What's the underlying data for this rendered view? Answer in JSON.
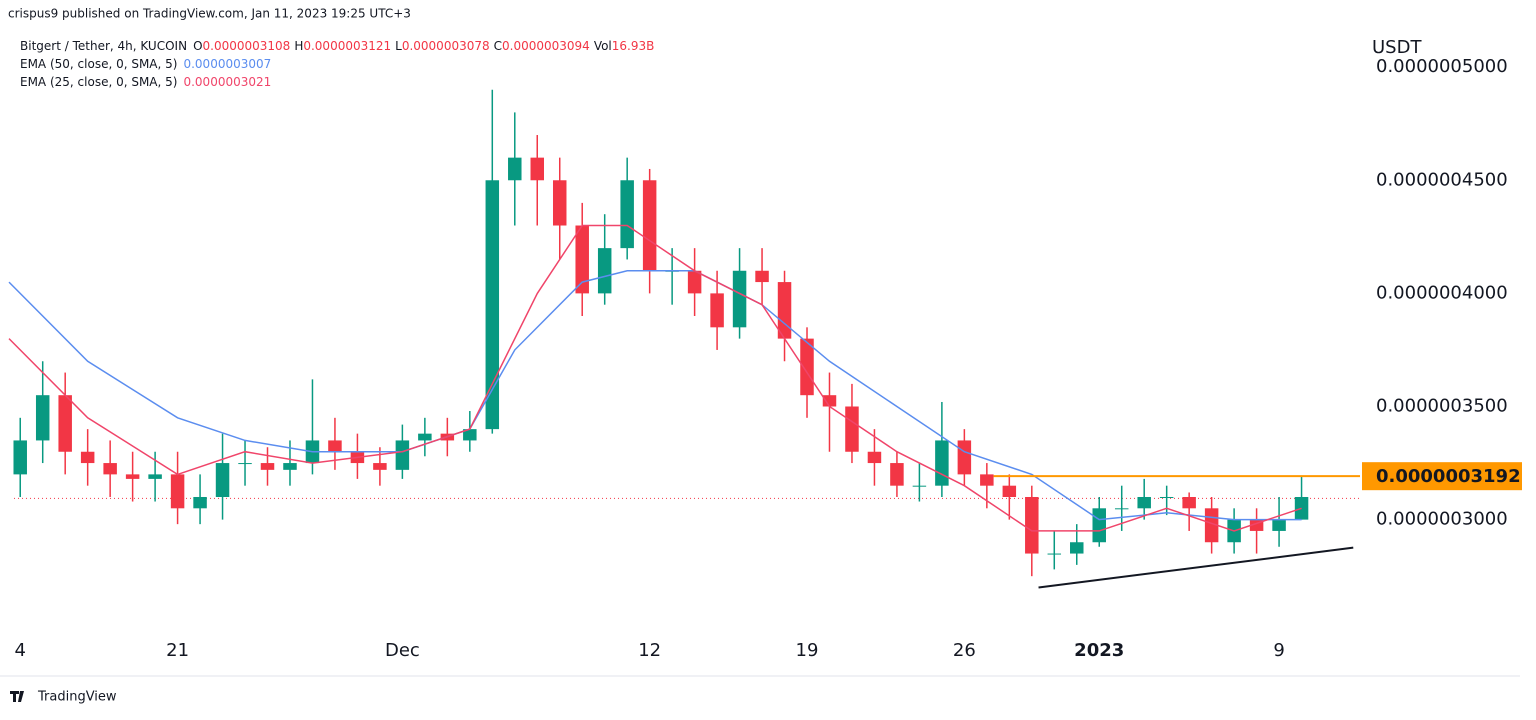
{
  "header": "crispus9 published on TradingView.com, Jan 11, 2023 19:25 UTC+3",
  "footer": "TradingView",
  "chart_data": {
    "type": "candlestick",
    "symbol": "Bitgert / Tether, 4h, KUCOIN",
    "ohlc_legend": [
      [
        "O",
        "0.0000003108"
      ],
      [
        "H",
        "0.0000003121"
      ],
      [
        "L",
        "0.0000003078"
      ],
      [
        "C",
        "0.0000003094"
      ],
      [
        "Vol",
        "16.93B"
      ]
    ],
    "currency": "USDT",
    "up_color": "#089981",
    "down_color": "#f23645",
    "x": [
      0,
      1,
      2,
      3,
      4,
      5,
      6,
      7,
      8,
      9,
      10,
      11,
      12,
      13,
      14,
      15,
      16,
      17,
      18,
      19,
      20,
      21,
      22,
      23,
      24,
      25,
      26,
      27,
      28,
      29,
      30,
      31,
      32,
      33,
      34,
      35,
      36,
      37,
      38,
      39,
      40,
      41,
      42,
      43,
      44,
      45,
      46,
      47,
      48,
      49,
      50,
      51,
      52,
      53,
      54,
      55,
      56,
      57
    ],
    "open": [
      3.2e-07,
      3.35e-07,
      3.55e-07,
      3.3e-07,
      3.25e-07,
      3.2e-07,
      3.18e-07,
      3.2e-07,
      3.05e-07,
      3.1e-07,
      3.25e-07,
      3.25e-07,
      3.22e-07,
      3.25e-07,
      3.35e-07,
      3.3e-07,
      3.25e-07,
      3.22e-07,
      3.35e-07,
      3.38e-07,
      3.35e-07,
      3.4e-07,
      4.5e-07,
      4.6e-07,
      4.5e-07,
      4.3e-07,
      4e-07,
      4.2e-07,
      4.5e-07,
      4.1e-07,
      4.1e-07,
      4e-07,
      3.85e-07,
      4.1e-07,
      4.05e-07,
      3.8e-07,
      3.55e-07,
      3.5e-07,
      3.3e-07,
      3.25e-07,
      3.15e-07,
      3.15e-07,
      3.35e-07,
      3.2e-07,
      3.15e-07,
      3.1e-07,
      2.85e-07,
      2.85e-07,
      2.9e-07,
      3.05e-07,
      3.05e-07,
      3.1e-07,
      3.1e-07,
      3.05e-07,
      2.9e-07,
      3e-07,
      2.95e-07,
      3e-07
    ],
    "high": [
      3.45e-07,
      3.7e-07,
      3.65e-07,
      3.4e-07,
      3.35e-07,
      3.3e-07,
      3.3e-07,
      3.3e-07,
      3.2e-07,
      3.38e-07,
      3.35e-07,
      3.32e-07,
      3.35e-07,
      3.62e-07,
      3.45e-07,
      3.38e-07,
      3.32e-07,
      3.42e-07,
      3.45e-07,
      3.45e-07,
      3.48e-07,
      4.9e-07,
      4.8e-07,
      4.7e-07,
      4.6e-07,
      4.4e-07,
      4.35e-07,
      4.6e-07,
      4.55e-07,
      4.2e-07,
      4.2e-07,
      4.1e-07,
      4.2e-07,
      4.2e-07,
      4.1e-07,
      3.85e-07,
      3.65e-07,
      3.6e-07,
      3.4e-07,
      3.3e-07,
      3.25e-07,
      3.52e-07,
      3.4e-07,
      3.25e-07,
      3.2e-07,
      3.15e-07,
      2.95e-07,
      2.98e-07,
      3.1e-07,
      3.15e-07,
      3.18e-07,
      3.15e-07,
      3.12e-07,
      3.1e-07,
      3.05e-07,
      3.05e-07,
      3.1e-07,
      3.19e-07
    ],
    "low": [
      3.1e-07,
      3.25e-07,
      3.2e-07,
      3.15e-07,
      3.1e-07,
      3.08e-07,
      3.08e-07,
      2.98e-07,
      2.98e-07,
      3e-07,
      3.15e-07,
      3.15e-07,
      3.15e-07,
      3.2e-07,
      3.22e-07,
      3.18e-07,
      3.15e-07,
      3.18e-07,
      3.28e-07,
      3.28e-07,
      3.3e-07,
      3.38e-07,
      4.3e-07,
      4.3e-07,
      4.15e-07,
      3.9e-07,
      3.95e-07,
      4.15e-07,
      4e-07,
      3.95e-07,
      3.9e-07,
      3.75e-07,
      3.8e-07,
      3.95e-07,
      3.7e-07,
      3.45e-07,
      3.3e-07,
      3.25e-07,
      3.15e-07,
      3.1e-07,
      3.08e-07,
      3.1e-07,
      3.15e-07,
      3.05e-07,
      3e-07,
      2.75e-07,
      2.78e-07,
      2.8e-07,
      2.88e-07,
      2.95e-07,
      3e-07,
      3.02e-07,
      2.95e-07,
      2.85e-07,
      2.85e-07,
      2.85e-07,
      2.88e-07,
      3e-07
    ],
    "close": [
      3.35e-07,
      3.55e-07,
      3.3e-07,
      3.25e-07,
      3.2e-07,
      3.18e-07,
      3.2e-07,
      3.05e-07,
      3.1e-07,
      3.25e-07,
      3.25e-07,
      3.22e-07,
      3.25e-07,
      3.35e-07,
      3.3e-07,
      3.25e-07,
      3.22e-07,
      3.35e-07,
      3.38e-07,
      3.35e-07,
      3.4e-07,
      4.5e-07,
      4.6e-07,
      4.5e-07,
      4.3e-07,
      4e-07,
      4.2e-07,
      4.5e-07,
      4.1e-07,
      4.1e-07,
      4e-07,
      3.85e-07,
      4.1e-07,
      4.05e-07,
      3.8e-07,
      3.55e-07,
      3.5e-07,
      3.3e-07,
      3.25e-07,
      3.15e-07,
      3.15e-07,
      3.35e-07,
      3.2e-07,
      3.15e-07,
      3.1e-07,
      2.85e-07,
      2.85e-07,
      2.9e-07,
      3.05e-07,
      3.05e-07,
      3.1e-07,
      3.1e-07,
      3.05e-07,
      2.9e-07,
      3e-07,
      2.95e-07,
      3e-07,
      3.1e-07
    ],
    "series": [
      {
        "name": "EMA (50, close, 0, SMA, 5)",
        "legend_value": "0.0000003007",
        "color": "#5b8def",
        "x": [
          -0.5,
          3,
          7,
          10,
          13,
          17,
          20,
          22,
          25,
          27,
          30,
          33,
          36,
          39,
          42,
          45,
          48,
          51,
          54,
          57
        ],
        "values": [
          4.05e-07,
          3.7e-07,
          3.45e-07,
          3.35e-07,
          3.3e-07,
          3.3e-07,
          3.4e-07,
          3.75e-07,
          4.05e-07,
          4.1e-07,
          4.1e-07,
          3.95e-07,
          3.7e-07,
          3.5e-07,
          3.3e-07,
          3.2e-07,
          3e-07,
          3.03e-07,
          3e-07,
          3e-07
        ]
      },
      {
        "name": "EMA (25, close, 0, SMA, 5)",
        "legend_value": "0.0000003021",
        "color": "#f0456a",
        "x": [
          -0.5,
          3,
          7,
          10,
          13,
          17,
          20,
          21,
          23,
          25,
          27,
          30,
          33,
          36,
          39,
          42,
          45,
          48,
          51,
          54,
          57
        ],
        "values": [
          3.8e-07,
          3.45e-07,
          3.2e-07,
          3.3e-07,
          3.25e-07,
          3.3e-07,
          3.4e-07,
          3.6e-07,
          4e-07,
          4.3e-07,
          4.3e-07,
          4.1e-07,
          3.95e-07,
          3.5e-07,
          3.3e-07,
          3.15e-07,
          2.95e-07,
          2.95e-07,
          3.05e-07,
          2.95e-07,
          3.05e-07
        ]
      }
    ],
    "xlim": [
      -0.9,
      59.6
    ],
    "xticks": [
      {
        "value": 0,
        "label": "4"
      },
      {
        "value": 7,
        "label": "21"
      },
      {
        "value": 17,
        "label": "Dec"
      },
      {
        "value": 28,
        "label": "12"
      },
      {
        "value": 35,
        "label": "19"
      },
      {
        "value": 42,
        "label": "26"
      },
      {
        "value": 48,
        "label": "2023"
      },
      {
        "value": 56,
        "label": "9"
      }
    ],
    "ylim": [
      2.49e-07,
      5.12e-07
    ],
    "yticks": [
      {
        "value": 3e-07,
        "label": "0.0000003000"
      },
      {
        "value": 3.5e-07,
        "label": "0.0000003500"
      },
      {
        "value": 4e-07,
        "label": "0.0000004000"
      },
      {
        "value": 4.5e-07,
        "label": "0.0000004500"
      },
      {
        "value": 5e-07,
        "label": "0.0000005000"
      }
    ],
    "resistance": {
      "value": 3.192e-07,
      "label": "0.0000003192",
      "x_start": 43.3,
      "color": "#ff9800"
    },
    "last_price": 3.094e-07,
    "trendline": {
      "x": [
        45.3,
        59.3
      ],
      "y": [
        2.7e-07,
        2.876e-07
      ]
    }
  }
}
